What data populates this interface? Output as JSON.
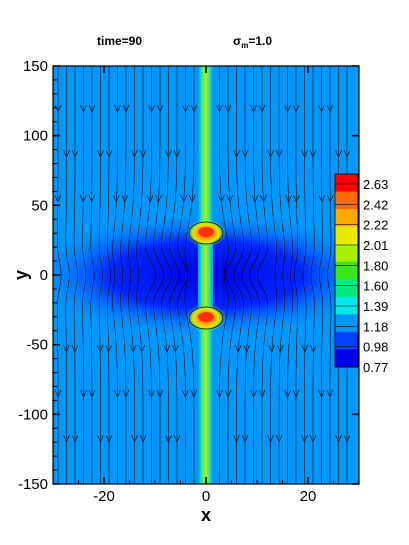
{
  "title": {
    "time_text": "time=90",
    "sigma_symbol": "σ",
    "sigma_sub": "m",
    "sigma_value": "=1.0"
  },
  "chart_data": {
    "type": "heatmap",
    "xlabel": "x",
    "ylabel": "y",
    "xlim": [
      -30,
      30
    ],
    "ylim": [
      -150,
      150
    ],
    "x_ticks": [
      -20,
      0,
      20
    ],
    "y_ticks": [
      150,
      100,
      50,
      0,
      -50,
      -100,
      -150
    ],
    "colorbar": {
      "levels": [
        "2.63",
        "2.42",
        "2.22",
        "2.01",
        "1.80",
        "1.60",
        "1.39",
        "1.18",
        "0.98",
        "0.77"
      ],
      "colors": [
        "#ff0000",
        "#ff6a00",
        "#ffaa00",
        "#e8e800",
        "#a8f000",
        "#38e818",
        "#00e880",
        "#00e8e8",
        "#0098ff",
        "#0040ff",
        "#0000ee"
      ]
    },
    "features": {
      "jet_center_x": 0,
      "hotspots": [
        {
          "x": 0,
          "y": 30,
          "value": 2.63
        },
        {
          "x": 0,
          "y": -30,
          "value": 2.63
        }
      ],
      "background_value": 0.98,
      "streamlines": "field lines directed downward (negative y), bending around the central current sheet"
    }
  }
}
